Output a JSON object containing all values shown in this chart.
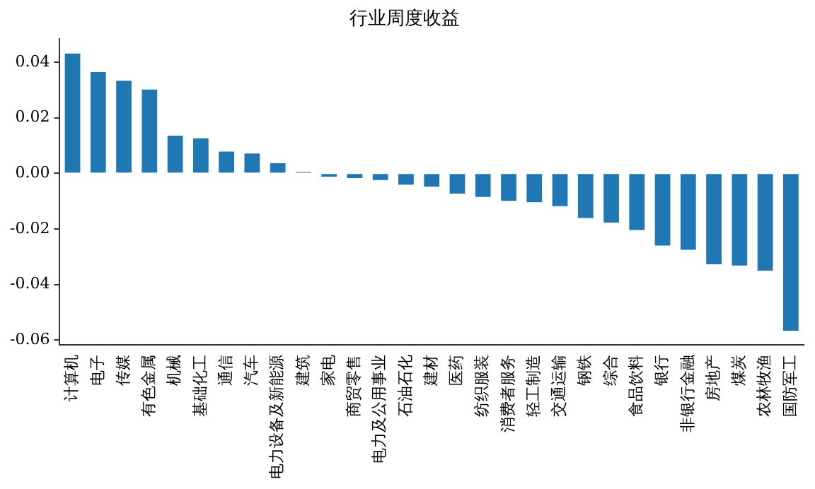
{
  "chart_data": {
    "type": "bar",
    "title": "行业周度收益",
    "categories": [
      "计算机",
      "电子",
      "传媒",
      "有色金属",
      "机械",
      "基础化工",
      "通信",
      "汽车",
      "电力设备及新能源",
      "建筑",
      "家电",
      "商贸零售",
      "电力及公用事业",
      "石油石化",
      "建材",
      "医药",
      "纺织服装",
      "消费者服务",
      "轻工制造",
      "交通运输",
      "钢铁",
      "综合",
      "食品饮料",
      "银行",
      "非银行金融",
      "房地产",
      "煤炭",
      "农林牧渔",
      "国防军工"
    ],
    "values": [
      0.0431,
      0.0364,
      0.0333,
      0.0301,
      0.0135,
      0.0126,
      0.0078,
      0.0071,
      0.0036,
      0.0005,
      -0.0012,
      -0.0017,
      -0.0024,
      -0.0041,
      -0.0048,
      -0.0073,
      -0.0085,
      -0.0099,
      -0.0104,
      -0.0118,
      -0.0161,
      -0.0177,
      -0.0204,
      -0.026,
      -0.0275,
      -0.0327,
      -0.0332,
      -0.035,
      -0.0566
    ],
    "color": "#1f77b4",
    "ylim": [
      -0.0617,
      0.0483
    ],
    "yticks": [
      {
        "value": -0.06,
        "label": "-0.06"
      },
      {
        "value": -0.04,
        "label": "-0.04"
      },
      {
        "value": -0.02,
        "label": "-0.02"
      },
      {
        "value": 0,
        "label": "0.00"
      },
      {
        "value": 0.02,
        "label": "0.02"
      },
      {
        "value": 0.04,
        "label": "0.04"
      }
    ],
    "grid": false,
    "legend": false
  }
}
